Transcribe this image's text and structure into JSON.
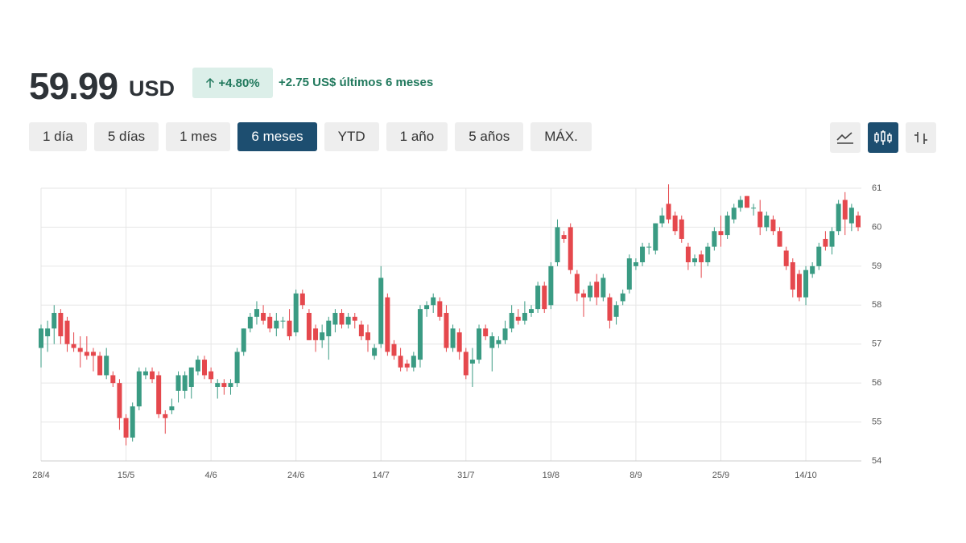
{
  "header": {
    "price": "59.99",
    "currency": "USD",
    "change_pct": "+4.80%",
    "change_text": "+2.75 US$ últimos 6 meses"
  },
  "ranges": {
    "buttons": [
      "1 día",
      "5 días",
      "1 mes",
      "6 meses",
      "YTD",
      "1 año",
      "5 años",
      "MÁX."
    ],
    "active": 3
  },
  "chart_data": {
    "type": "candlestick",
    "categories": [
      "28/4",
      null,
      null,
      null,
      null,
      null,
      null,
      null,
      null,
      null,
      null,
      null,
      null,
      "15/5",
      null,
      null,
      null,
      null,
      null,
      null,
      null,
      null,
      null,
      null,
      null,
      null,
      "4/6",
      null,
      null,
      null,
      null,
      null,
      null,
      null,
      null,
      null,
      null,
      null,
      null,
      "24/6",
      null,
      null,
      null,
      null,
      null,
      null,
      null,
      null,
      null,
      null,
      null,
      null,
      "14/7",
      null,
      null,
      null,
      null,
      null,
      null,
      null,
      null,
      null,
      null,
      null,
      null,
      "31/7",
      null,
      null,
      null,
      null,
      null,
      null,
      null,
      null,
      null,
      null,
      null,
      null,
      "19/8",
      null,
      null,
      null,
      null,
      null,
      null,
      null,
      null,
      null,
      null,
      null,
      null,
      "8/9",
      null,
      null,
      null,
      null,
      null,
      null,
      null,
      null,
      null,
      null,
      null,
      null,
      "25/9",
      null,
      null,
      null,
      null,
      null,
      null,
      null,
      null,
      null,
      null,
      null,
      null,
      "14/10",
      null,
      null,
      null,
      null,
      null,
      null,
      null,
      null
    ],
    "open": [
      56.9,
      57.2,
      57.4,
      57.8,
      57.6,
      57.0,
      56.9,
      56.8,
      56.8,
      56.7,
      56.2,
      56.2,
      56.0,
      55.1,
      54.6,
      55.4,
      56.2,
      56.3,
      56.2,
      55.2,
      55.3,
      55.8,
      55.8,
      55.9,
      56.3,
      56.6,
      56.3,
      55.9,
      56.0,
      55.9,
      56.0,
      56.8,
      57.4,
      57.7,
      57.8,
      57.7,
      57.4,
      57.6,
      57.6,
      57.3,
      58.3,
      57.8,
      57.4,
      57.1,
      57.2,
      57.5,
      57.8,
      57.5,
      57.7,
      57.5,
      57.3,
      56.7,
      57.0,
      58.2,
      57.0,
      56.7,
      56.5,
      56.4,
      56.6,
      57.9,
      58.0,
      58.1,
      57.8,
      56.9,
      57.3,
      56.8,
      56.5,
      56.6,
      57.4,
      56.9,
      57.0,
      57.1,
      57.4,
      57.7,
      57.6,
      57.8,
      57.9,
      58.5,
      58.0,
      59.1,
      59.8,
      60.0,
      58.8,
      58.3,
      58.2,
      58.6,
      58.2,
      58.2,
      57.7,
      58.1,
      58.4,
      59.0,
      59.1,
      59.5,
      59.4,
      60.1,
      60.6,
      60.3,
      60.2,
      59.5,
      59.1,
      59.3,
      59.1,
      59.5,
      59.9,
      59.8,
      60.2,
      60.5,
      60.8,
      60.5,
      60.4,
      60.0,
      60.2,
      59.9,
      59.4,
      59.1,
      58.8,
      58.2,
      58.8,
      59.0,
      59.7,
      59.5,
      59.9,
      60.7,
      60.1,
      60.3
    ],
    "high": [
      57.5,
      57.6,
      58.0,
      57.9,
      57.7,
      57.3,
      57.2,
      57.2,
      56.9,
      56.8,
      56.9,
      56.3,
      56.1,
      55.2,
      55.5,
      56.4,
      56.4,
      56.4,
      56.3,
      55.3,
      55.6,
      56.3,
      56.3,
      56.4,
      56.7,
      56.7,
      56.4,
      56.1,
      56.1,
      56.1,
      56.9,
      57.4,
      57.8,
      58.1,
      58.0,
      57.8,
      57.8,
      57.7,
      57.9,
      58.4,
      58.4,
      57.9,
      57.5,
      57.5,
      57.7,
      57.9,
      57.9,
      57.8,
      57.8,
      57.6,
      57.5,
      57.0,
      59.0,
      58.3,
      57.1,
      56.9,
      56.6,
      56.8,
      58.0,
      58.1,
      58.3,
      58.2,
      58.0,
      57.5,
      57.4,
      56.9,
      56.9,
      57.5,
      57.5,
      57.3,
      57.2,
      57.6,
      58.0,
      57.9,
      58.1,
      58.0,
      58.6,
      58.6,
      59.1,
      60.2,
      59.9,
      60.1,
      58.9,
      58.4,
      58.6,
      58.8,
      58.8,
      58.3,
      58.1,
      58.4,
      59.3,
      59.2,
      59.6,
      59.6,
      60.1,
      60.5,
      61.1,
      60.4,
      60.3,
      59.6,
      59.3,
      59.4,
      59.6,
      60.0,
      60.3,
      60.4,
      60.6,
      60.8,
      60.8,
      60.6,
      60.7,
      60.4,
      60.3,
      60.0,
      59.5,
      59.2,
      58.9,
      59.0,
      59.1,
      59.6,
      59.9,
      60.0,
      60.7,
      60.9,
      60.6,
      60.4
    ],
    "low": [
      56.4,
      56.8,
      57.0,
      57.0,
      56.8,
      56.8,
      56.4,
      56.6,
      56.3,
      56.2,
      56.1,
      55.9,
      54.8,
      54.4,
      54.5,
      55.3,
      56.1,
      56.0,
      55.1,
      54.7,
      55.2,
      55.5,
      55.6,
      55.6,
      56.2,
      56.1,
      56.0,
      55.6,
      55.7,
      55.7,
      55.9,
      56.7,
      57.3,
      57.5,
      57.5,
      57.3,
      57.2,
      57.4,
      57.1,
      57.2,
      57.9,
      57.1,
      56.8,
      56.9,
      56.6,
      57.3,
      57.4,
      57.4,
      57.4,
      57.1,
      56.8,
      56.6,
      56.9,
      56.7,
      56.6,
      56.3,
      56.3,
      56.3,
      56.4,
      57.7,
      57.8,
      57.6,
      56.8,
      56.8,
      56.6,
      56.1,
      55.9,
      56.5,
      57.1,
      56.3,
      56.9,
      57.0,
      57.3,
      57.5,
      57.5,
      57.7,
      57.8,
      57.8,
      57.9,
      59.0,
      59.6,
      58.8,
      58.1,
      57.7,
      58.1,
      58.0,
      58.1,
      57.4,
      57.5,
      58.0,
      58.3,
      58.9,
      59.0,
      59.3,
      59.3,
      60.0,
      60.1,
      59.8,
      59.6,
      58.9,
      59.0,
      58.7,
      59.0,
      59.4,
      59.5,
      59.7,
      60.1,
      60.4,
      60.5,
      60.3,
      59.8,
      59.9,
      59.8,
      59.5,
      58.9,
      58.2,
      58.1,
      58.0,
      58.7,
      58.9,
      59.4,
      59.3,
      59.8,
      59.8,
      59.9,
      59.9
    ],
    "close": [
      57.4,
      57.4,
      57.8,
      57.2,
      57.0,
      56.9,
      56.8,
      56.7,
      56.7,
      56.2,
      56.7,
      56.0,
      55.1,
      54.6,
      55.4,
      56.3,
      56.3,
      56.1,
      55.2,
      55.1,
      55.4,
      56.2,
      56.2,
      56.4,
      56.6,
      56.2,
      56.1,
      56.0,
      55.9,
      56.0,
      56.8,
      57.4,
      57.7,
      57.9,
      57.6,
      57.4,
      57.6,
      57.6,
      57.2,
      58.3,
      58.0,
      57.1,
      57.1,
      57.3,
      57.6,
      57.8,
      57.5,
      57.7,
      57.6,
      57.2,
      57.1,
      56.9,
      58.7,
      56.8,
      56.7,
      56.4,
      56.4,
      56.7,
      57.9,
      58.0,
      58.2,
      57.7,
      56.9,
      57.4,
      56.8,
      56.2,
      56.6,
      57.4,
      57.2,
      57.2,
      57.1,
      57.4,
      57.8,
      57.6,
      57.8,
      57.9,
      58.5,
      57.9,
      59.0,
      60.0,
      59.7,
      58.9,
      58.3,
      58.2,
      58.5,
      58.2,
      58.7,
      57.6,
      58.0,
      58.3,
      59.2,
      59.1,
      59.5,
      59.5,
      60.1,
      60.3,
      60.2,
      59.9,
      59.7,
      59.1,
      59.2,
      59.1,
      59.5,
      59.9,
      59.8,
      60.3,
      60.5,
      60.7,
      60.5,
      60.5,
      60.0,
      60.3,
      59.9,
      59.5,
      59.0,
      58.4,
      58.2,
      58.9,
      59.0,
      59.5,
      59.5,
      59.9,
      60.6,
      60.2,
      60.5,
      60.0
    ],
    "up_color": "#3a9b83",
    "down_color": "#e5484d",
    "ylim": [
      54,
      61
    ],
    "yticks": [
      54,
      55,
      56,
      57,
      58,
      59,
      60,
      61
    ],
    "grid": true
  }
}
